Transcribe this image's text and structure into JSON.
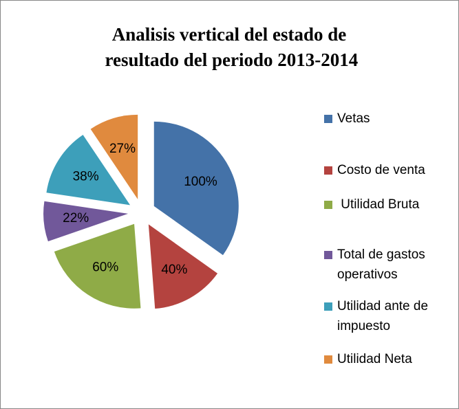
{
  "chart_data": {
    "type": "pie",
    "title": "Analisis vertical del estado de resultado del periodo 2013-2014",
    "categories": [
      "Vetas",
      "Costo de venta",
      " Utilidad Bruta",
      "Total de gastos operativos",
      "Utilidad ante de impuesto",
      "Utilidad Neta"
    ],
    "values": [
      100,
      40,
      60,
      22,
      38,
      27
    ],
    "value_labels": [
      "100%",
      "40%",
      "60%",
      "22%",
      "38%",
      "27%"
    ],
    "colors": [
      "#4472a8",
      "#b4433f",
      "#8fab47",
      "#71589a",
      "#3d9fba",
      "#e08a3e"
    ],
    "legend": "right"
  }
}
